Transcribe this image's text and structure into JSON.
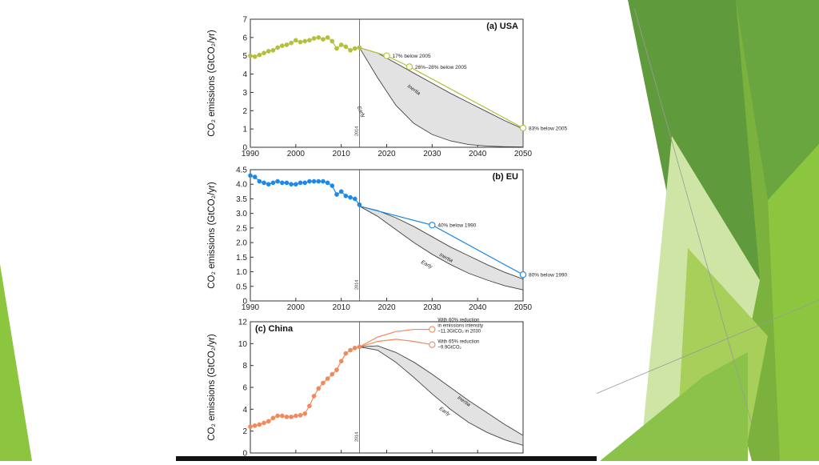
{
  "colors": {
    "green_dark": "#5f9a3c",
    "green_mid": "#7ab23d",
    "green_light": "#a7cf5a",
    "green_pale": "#cfe5a6",
    "usa": "#b5bf3a",
    "eu": "#1e88e5",
    "china": "#f08a5d",
    "band_fill": "#e2e2e2"
  },
  "chart_data": [
    {
      "type": "line",
      "title": "(a) USA",
      "ylabel": "CO₂ emissions (GtCO₂/yr)",
      "xlim": [
        1990,
        2050
      ],
      "ylim": [
        0,
        7
      ],
      "xticks": [
        1990,
        2000,
        2010,
        2020,
        2030,
        2040,
        2050
      ],
      "yticks": [
        0,
        1,
        2,
        3,
        4,
        5,
        6,
        7
      ],
      "marker_year": 2014,
      "marker_label": "2014",
      "historical": {
        "x": [
          1990,
          1991,
          1992,
          1993,
          1994,
          1995,
          1996,
          1997,
          1998,
          1999,
          2000,
          2001,
          2002,
          2003,
          2004,
          2005,
          2006,
          2007,
          2008,
          2009,
          2010,
          2011,
          2012,
          2013,
          2014
        ],
        "y": [
          5.0,
          4.95,
          5.05,
          5.15,
          5.25,
          5.3,
          5.45,
          5.55,
          5.6,
          5.7,
          5.85,
          5.75,
          5.8,
          5.85,
          5.95,
          6.0,
          5.9,
          6.0,
          5.8,
          5.4,
          5.6,
          5.5,
          5.3,
          5.4,
          5.45
        ]
      },
      "target_line": {
        "x": [
          2014,
          2020,
          2025,
          2050
        ],
        "y": [
          5.45,
          5.0,
          4.4,
          1.05
        ]
      },
      "targets": [
        {
          "x": 2020,
          "y": 5.0,
          "label": "17% below 2005"
        },
        {
          "x": 2025,
          "y": 4.4,
          "label": "26%–28% below 2005"
        },
        {
          "x": 2050,
          "y": 1.05,
          "label": "83% below 2005"
        }
      ],
      "band": {
        "x": [
          2014,
          2018,
          2022,
          2026,
          2030,
          2034,
          2038,
          2042,
          2046,
          2050
        ],
        "upper": [
          5.45,
          5.15,
          4.6,
          4.05,
          3.5,
          2.95,
          2.45,
          1.95,
          1.45,
          1.0
        ],
        "lower": [
          5.45,
          3.8,
          2.3,
          1.3,
          0.7,
          0.35,
          0.15,
          0.07,
          0.03,
          0.02
        ]
      },
      "band_labels": [
        {
          "text": "Inertia",
          "x": 2024.5,
          "y": 3.3,
          "angle": 35
        },
        {
          "text": "Early",
          "x": 2013.5,
          "y": 2.2,
          "angle": 65
        }
      ]
    },
    {
      "type": "line",
      "title": "(b) EU",
      "ylabel": "CO₂ emissions (GtCO₂/yr)",
      "xlim": [
        1990,
        2050
      ],
      "ylim": [
        0,
        4.5
      ],
      "xticks": [
        1990,
        2000,
        2010,
        2020,
        2030,
        2040,
        2050
      ],
      "yticks": [
        0,
        0.5,
        1.0,
        1.5,
        2.0,
        2.5,
        3.0,
        3.5,
        4.0,
        4.5
      ],
      "yticklabels": [
        "0",
        "0.5",
        "1.0",
        "1.5",
        "2.0",
        "2.5",
        "3.0",
        "3.5",
        "4.0",
        "4.5"
      ],
      "marker_year": 2014,
      "marker_label": "2014",
      "historical": {
        "x": [
          1990,
          1991,
          1992,
          1993,
          1994,
          1995,
          1996,
          1997,
          1998,
          1999,
          2000,
          2001,
          2002,
          2003,
          2004,
          2005,
          2006,
          2007,
          2008,
          2009,
          2010,
          2011,
          2012,
          2013,
          2014
        ],
        "y": [
          4.3,
          4.25,
          4.1,
          4.05,
          4.0,
          4.05,
          4.1,
          4.05,
          4.05,
          4.0,
          4.0,
          4.05,
          4.05,
          4.1,
          4.1,
          4.1,
          4.1,
          4.05,
          3.95,
          3.65,
          3.75,
          3.6,
          3.55,
          3.5,
          3.3
        ]
      },
      "target_line": {
        "x": [
          2014,
          2030,
          2050
        ],
        "y": [
          3.25,
          2.6,
          0.9
        ]
      },
      "targets": [
        {
          "x": 2030,
          "y": 2.6,
          "label": "40% below 1990"
        },
        {
          "x": 2050,
          "y": 0.9,
          "label": "80% below 1990"
        }
      ],
      "band": {
        "x": [
          2014,
          2018,
          2022,
          2026,
          2030,
          2034,
          2038,
          2042,
          2046,
          2050
        ],
        "upper": [
          3.25,
          3.1,
          2.85,
          2.55,
          2.2,
          1.85,
          1.55,
          1.25,
          0.98,
          0.75
        ],
        "lower": [
          3.25,
          2.9,
          2.45,
          2.0,
          1.6,
          1.25,
          0.95,
          0.72,
          0.52,
          0.38
        ]
      },
      "band_labels": [
        {
          "text": "Inertia",
          "x": 2031.5,
          "y": 1.55,
          "angle": 28
        },
        {
          "text": "Early",
          "x": 2027.5,
          "y": 1.3,
          "angle": 28
        }
      ]
    },
    {
      "type": "line",
      "title": "(c) China",
      "ylabel": "CO₂ emissions (GtCO₂/yr)",
      "xlim": [
        1990,
        2050
      ],
      "ylim": [
        0,
        12
      ],
      "xticks": [
        1990,
        2000,
        2010,
        2020,
        2030,
        2040,
        2050
      ],
      "yticks": [
        0,
        2,
        4,
        6,
        8,
        10,
        12
      ],
      "marker_year": 2014,
      "marker_label": "2014",
      "historical": {
        "x": [
          1990,
          1991,
          1992,
          1993,
          1994,
          1995,
          1996,
          1997,
          1998,
          1999,
          2000,
          2001,
          2002,
          2003,
          2004,
          2005,
          2006,
          2007,
          2008,
          2009,
          2010,
          2011,
          2012,
          2013,
          2014
        ],
        "y": [
          2.4,
          2.5,
          2.6,
          2.75,
          2.9,
          3.2,
          3.4,
          3.4,
          3.3,
          3.3,
          3.4,
          3.45,
          3.6,
          4.3,
          5.2,
          5.9,
          6.4,
          6.8,
          7.2,
          7.6,
          8.4,
          9.1,
          9.4,
          9.6,
          9.7
        ]
      },
      "target_curves": [
        {
          "x": [
            2014,
            2018,
            2022,
            2026,
            2030
          ],
          "y": [
            9.7,
            10.6,
            11.1,
            11.3,
            11.3
          ]
        },
        {
          "x": [
            2014,
            2018,
            2022,
            2026,
            2030
          ],
          "y": [
            9.7,
            10.2,
            10.4,
            10.2,
            9.9
          ]
        }
      ],
      "targets": [
        {
          "x": 2030,
          "y": 11.3,
          "label": "With 60% reduction in emissions intensity ~11.3GtCO₂ in 2030"
        },
        {
          "x": 2030,
          "y": 9.9,
          "label": "With 65% reduction ~9.9GtCO₂"
        }
      ],
      "band": {
        "x": [
          2014,
          2018,
          2022,
          2026,
          2030,
          2034,
          2038,
          2042,
          2046,
          2050
        ],
        "upper": [
          9.7,
          9.8,
          9.2,
          8.3,
          7.2,
          6.0,
          4.8,
          3.7,
          2.6,
          1.6
        ],
        "lower": [
          9.7,
          9.4,
          8.3,
          6.9,
          5.4,
          4.0,
          2.8,
          1.9,
          1.2,
          0.7
        ]
      },
      "band_labels": [
        {
          "text": "Inertia",
          "x": 2035.5,
          "y": 5.0,
          "angle": 35
        },
        {
          "text": "Early",
          "x": 2031.5,
          "y": 4.0,
          "angle": 35
        }
      ]
    }
  ]
}
